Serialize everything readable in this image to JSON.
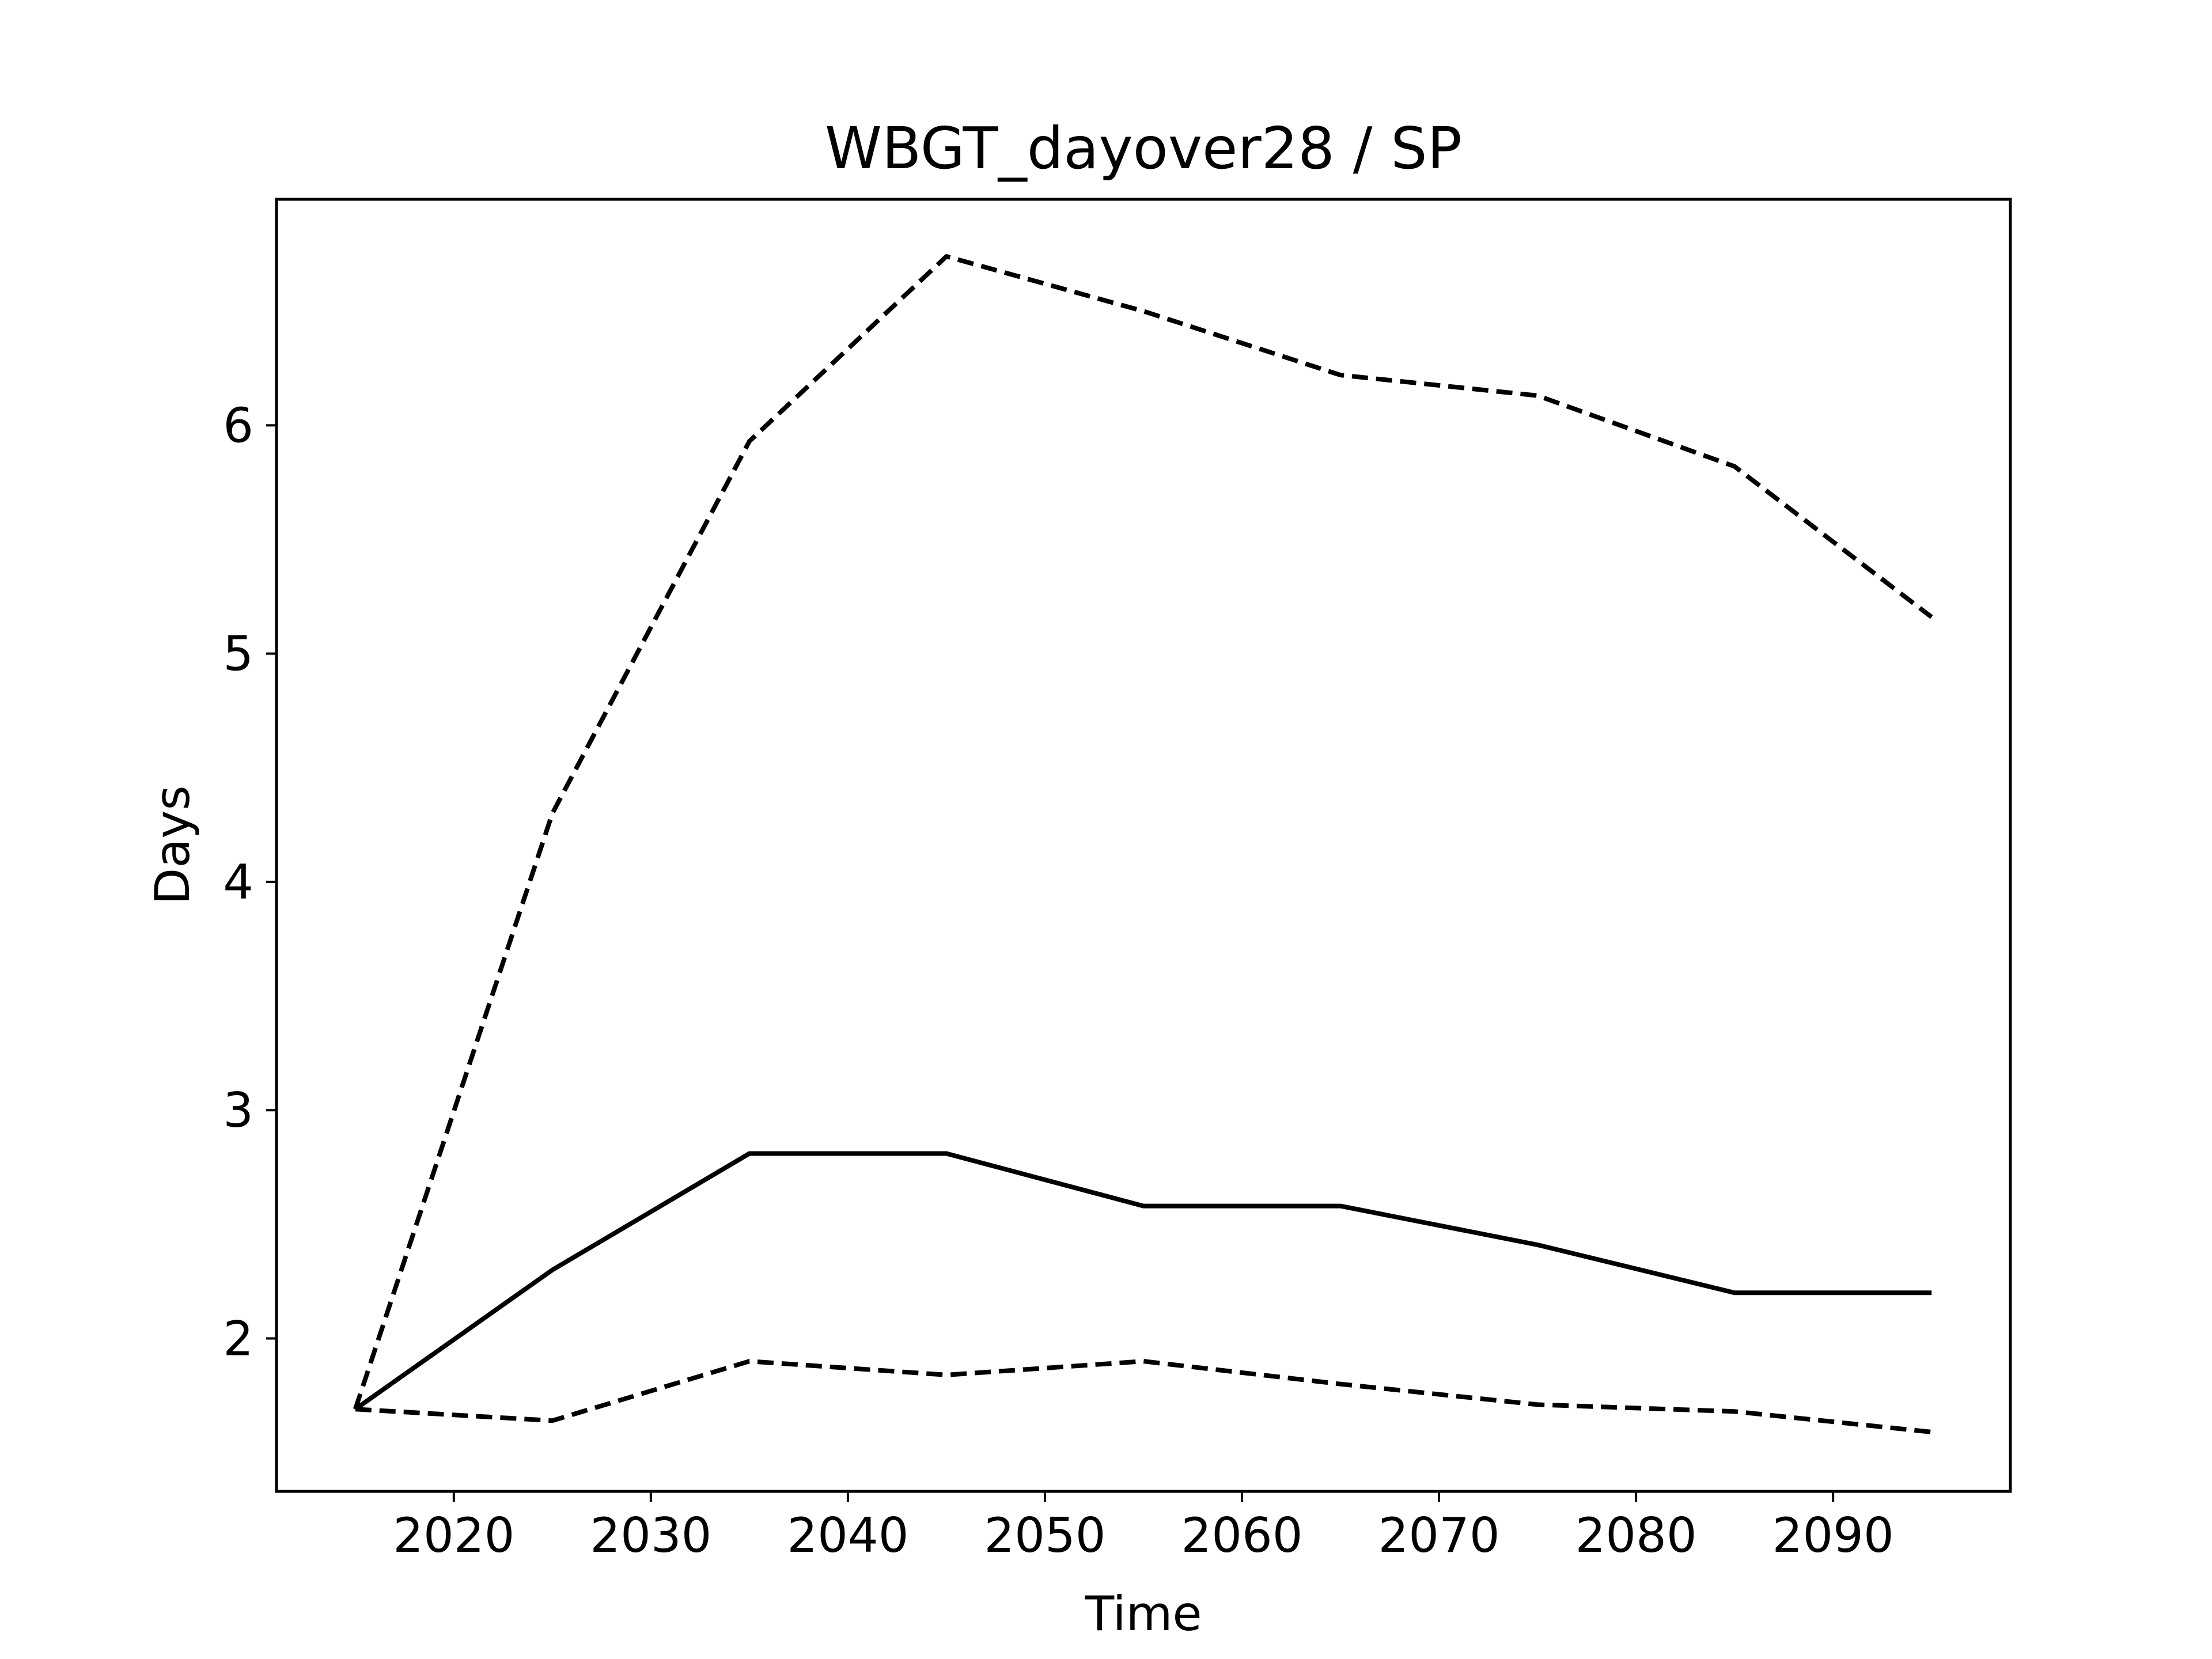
{
  "chart_data": {
    "type": "line",
    "title": "WBGT_dayover28 / SP",
    "xlabel": "Time",
    "ylabel": "Days",
    "xlim": [
      2011,
      2099
    ],
    "ylim": [
      1.33,
      6.99
    ],
    "xticks": [
      2020,
      2030,
      2040,
      2050,
      2060,
      2070,
      2080,
      2090
    ],
    "yticks": [
      2,
      3,
      4,
      5,
      6
    ],
    "grid": false,
    "legend": "none",
    "x": [
      2015,
      2025,
      2035,
      2045,
      2055,
      2065,
      2075,
      2085,
      2095
    ],
    "series": [
      {
        "style": "solid",
        "color": "#000000",
        "values": [
          1.69,
          2.3,
          2.81,
          2.81,
          2.58,
          2.58,
          2.41,
          2.2,
          2.2
        ]
      },
      {
        "style": "dashed",
        "color": "#000000",
        "values": [
          1.69,
          4.3,
          5.93,
          6.74,
          6.5,
          6.22,
          6.13,
          5.82,
          5.16
        ]
      },
      {
        "style": "dashed",
        "color": "#000000",
        "values": [
          1.69,
          1.64,
          1.9,
          1.84,
          1.9,
          1.8,
          1.71,
          1.68,
          1.59
        ]
      }
    ]
  }
}
